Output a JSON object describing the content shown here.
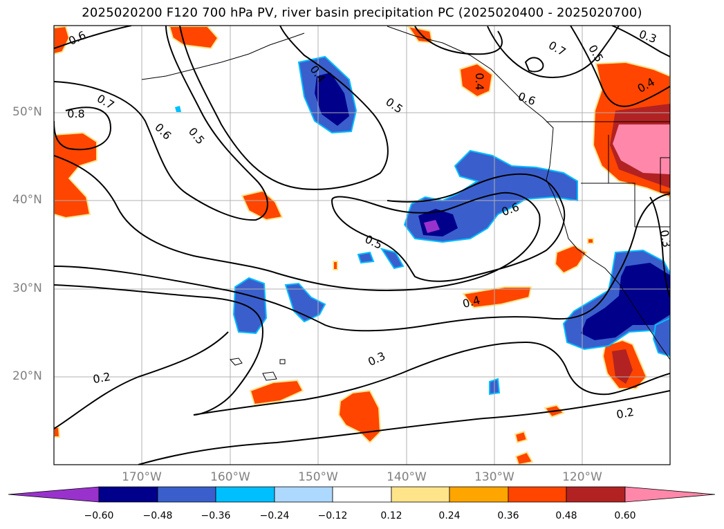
{
  "title": "2025020200 F120 700 hPa PV, river basin precipitation PC (2025020400 - 2025020700)",
  "map": {
    "lat_labels": [
      "50°N",
      "40°N",
      "30°N",
      "20°N"
    ],
    "lon_labels": [
      "170°W",
      "160°W",
      "150°W",
      "140°W",
      "130°W",
      "120°W"
    ],
    "contour_labels": [
      "0.6",
      "0.7",
      "0.8",
      "0.6",
      "0.5",
      "0.4",
      "0.5",
      "0.7",
      "0.5",
      "0.3",
      "0.4",
      "0.6",
      "0.6",
      "0.5",
      "0.4",
      "0.3",
      "0.3",
      "0.2",
      "0.2",
      "0.4"
    ],
    "contour_color": "#000000",
    "grid": true
  },
  "colorbar": {
    "ticks": [
      "−0.60",
      "−0.48",
      "−0.36",
      "−0.24",
      "−0.12",
      "0.12",
      "0.24",
      "0.36",
      "0.48",
      "0.60"
    ],
    "colors": [
      "#9932cc",
      "#00008b",
      "#3a5fcd",
      "#00bfff",
      "#add8ff",
      "#ffffff",
      "#ffe48a",
      "#ffa500",
      "#ff4500",
      "#b22222",
      "#ff88aa"
    ],
    "extend": "both"
  }
}
